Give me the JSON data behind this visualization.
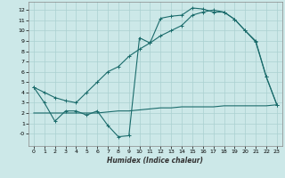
{
  "xlabel": "Humidex (Indice chaleur)",
  "background_color": "#cce8e8",
  "grid_color": "#aad0d0",
  "line_color": "#1a6b6b",
  "xlim": [
    -0.5,
    23.5
  ],
  "ylim": [
    -1.2,
    12.8
  ],
  "xticks": [
    0,
    1,
    2,
    3,
    4,
    5,
    6,
    7,
    8,
    9,
    10,
    11,
    12,
    13,
    14,
    15,
    16,
    17,
    18,
    19,
    20,
    21,
    22,
    23
  ],
  "yticks": [
    0,
    1,
    2,
    3,
    4,
    5,
    6,
    7,
    8,
    9,
    10,
    11,
    12
  ],
  "ytick_labels": [
    "-0",
    "1",
    "2",
    "3",
    "4",
    "5",
    "6",
    "7",
    "8",
    "9",
    "10",
    "11",
    "12"
  ],
  "line1_x": [
    0,
    1,
    2,
    3,
    4,
    5,
    6,
    7,
    8,
    9,
    10,
    11,
    12,
    13,
    14,
    15,
    16,
    17,
    18,
    19,
    20,
    21,
    22,
    23
  ],
  "line1_y": [
    4.5,
    3.0,
    1.2,
    2.2,
    2.2,
    1.8,
    2.2,
    0.8,
    -0.3,
    -0.2,
    9.3,
    8.8,
    11.2,
    11.4,
    11.5,
    12.2,
    12.1,
    11.8,
    11.8,
    11.1,
    10.0,
    9.0,
    5.5,
    2.8
  ],
  "line2_x": [
    0,
    1,
    2,
    3,
    4,
    5,
    6,
    7,
    8,
    9,
    10,
    11,
    12,
    13,
    14,
    15,
    16,
    17,
    18,
    19,
    20,
    21,
    22,
    23
  ],
  "line2_y": [
    2.0,
    2.0,
    2.0,
    2.0,
    2.0,
    2.0,
    2.0,
    2.1,
    2.2,
    2.2,
    2.3,
    2.4,
    2.5,
    2.5,
    2.6,
    2.6,
    2.6,
    2.6,
    2.7,
    2.7,
    2.7,
    2.7,
    2.7,
    2.8
  ],
  "line3_x": [
    0,
    1,
    2,
    3,
    4,
    5,
    6,
    7,
    8,
    9,
    10,
    11,
    12,
    13,
    14,
    15,
    16,
    17,
    18,
    19,
    20,
    21,
    22,
    23
  ],
  "line3_y": [
    4.5,
    4.0,
    3.5,
    3.2,
    3.0,
    4.0,
    5.0,
    6.0,
    6.5,
    7.5,
    8.2,
    8.8,
    9.5,
    10.0,
    10.5,
    11.5,
    11.8,
    12.0,
    11.8,
    11.1,
    10.0,
    8.9,
    5.5,
    2.8
  ]
}
